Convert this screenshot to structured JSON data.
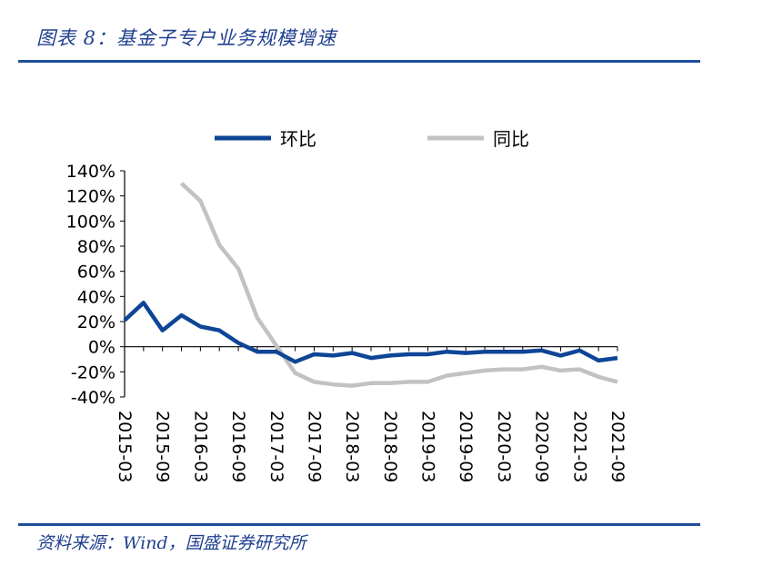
{
  "figure": {
    "title": "图表 8：基金子专户业务规模增速",
    "source": "资料来源：Wind，国盛证券研究所"
  },
  "chart_data": {
    "type": "line",
    "title": "",
    "xlabel": "",
    "ylabel": "",
    "ylim": [
      -40,
      140
    ],
    "yticks": [
      "140%",
      "120%",
      "100%",
      "80%",
      "60%",
      "40%",
      "20%",
      "0%",
      "-20%",
      "-40%"
    ],
    "yticks_values": [
      140,
      120,
      100,
      80,
      60,
      40,
      20,
      0,
      -20,
      -40
    ],
    "x_ticks": [
      "2015-03",
      "2015-09",
      "2016-03",
      "2016-09",
      "2017-03",
      "2017-09",
      "2018-03",
      "2018-09",
      "2019-03",
      "2019-09",
      "2020-03",
      "2020-09",
      "2021-03",
      "2021-09"
    ],
    "x": [
      "2015-03",
      "2015-06",
      "2015-09",
      "2015-12",
      "2016-03",
      "2016-06",
      "2016-09",
      "2016-12",
      "2017-03",
      "2017-06",
      "2017-09",
      "2017-12",
      "2018-03",
      "2018-06",
      "2018-09",
      "2018-12",
      "2019-03",
      "2019-06",
      "2019-09",
      "2019-12",
      "2020-03",
      "2020-06",
      "2020-09",
      "2020-12",
      "2021-03",
      "2021-06",
      "2021-09"
    ],
    "legend_position": "top",
    "series": [
      {
        "name": "环比",
        "color": "#0e4596",
        "values": [
          21,
          35,
          13,
          25,
          16,
          13,
          3,
          -4,
          -4,
          -12,
          -6,
          -7,
          -5,
          -9,
          -7,
          -6,
          -6,
          -4,
          -5,
          -4,
          -4,
          -4,
          -3,
          -7,
          -3,
          -11,
          -9
        ]
      },
      {
        "name": "同比",
        "color": "#c2c2c2",
        "values": [
          null,
          null,
          null,
          130,
          116,
          81,
          62,
          23,
          1,
          -21,
          -28,
          -30,
          -31,
          -29,
          -29,
          -28,
          -28,
          -23,
          -21,
          -19,
          -18,
          -18,
          -16,
          -19,
          -18,
          -24,
          -28
        ]
      }
    ]
  }
}
